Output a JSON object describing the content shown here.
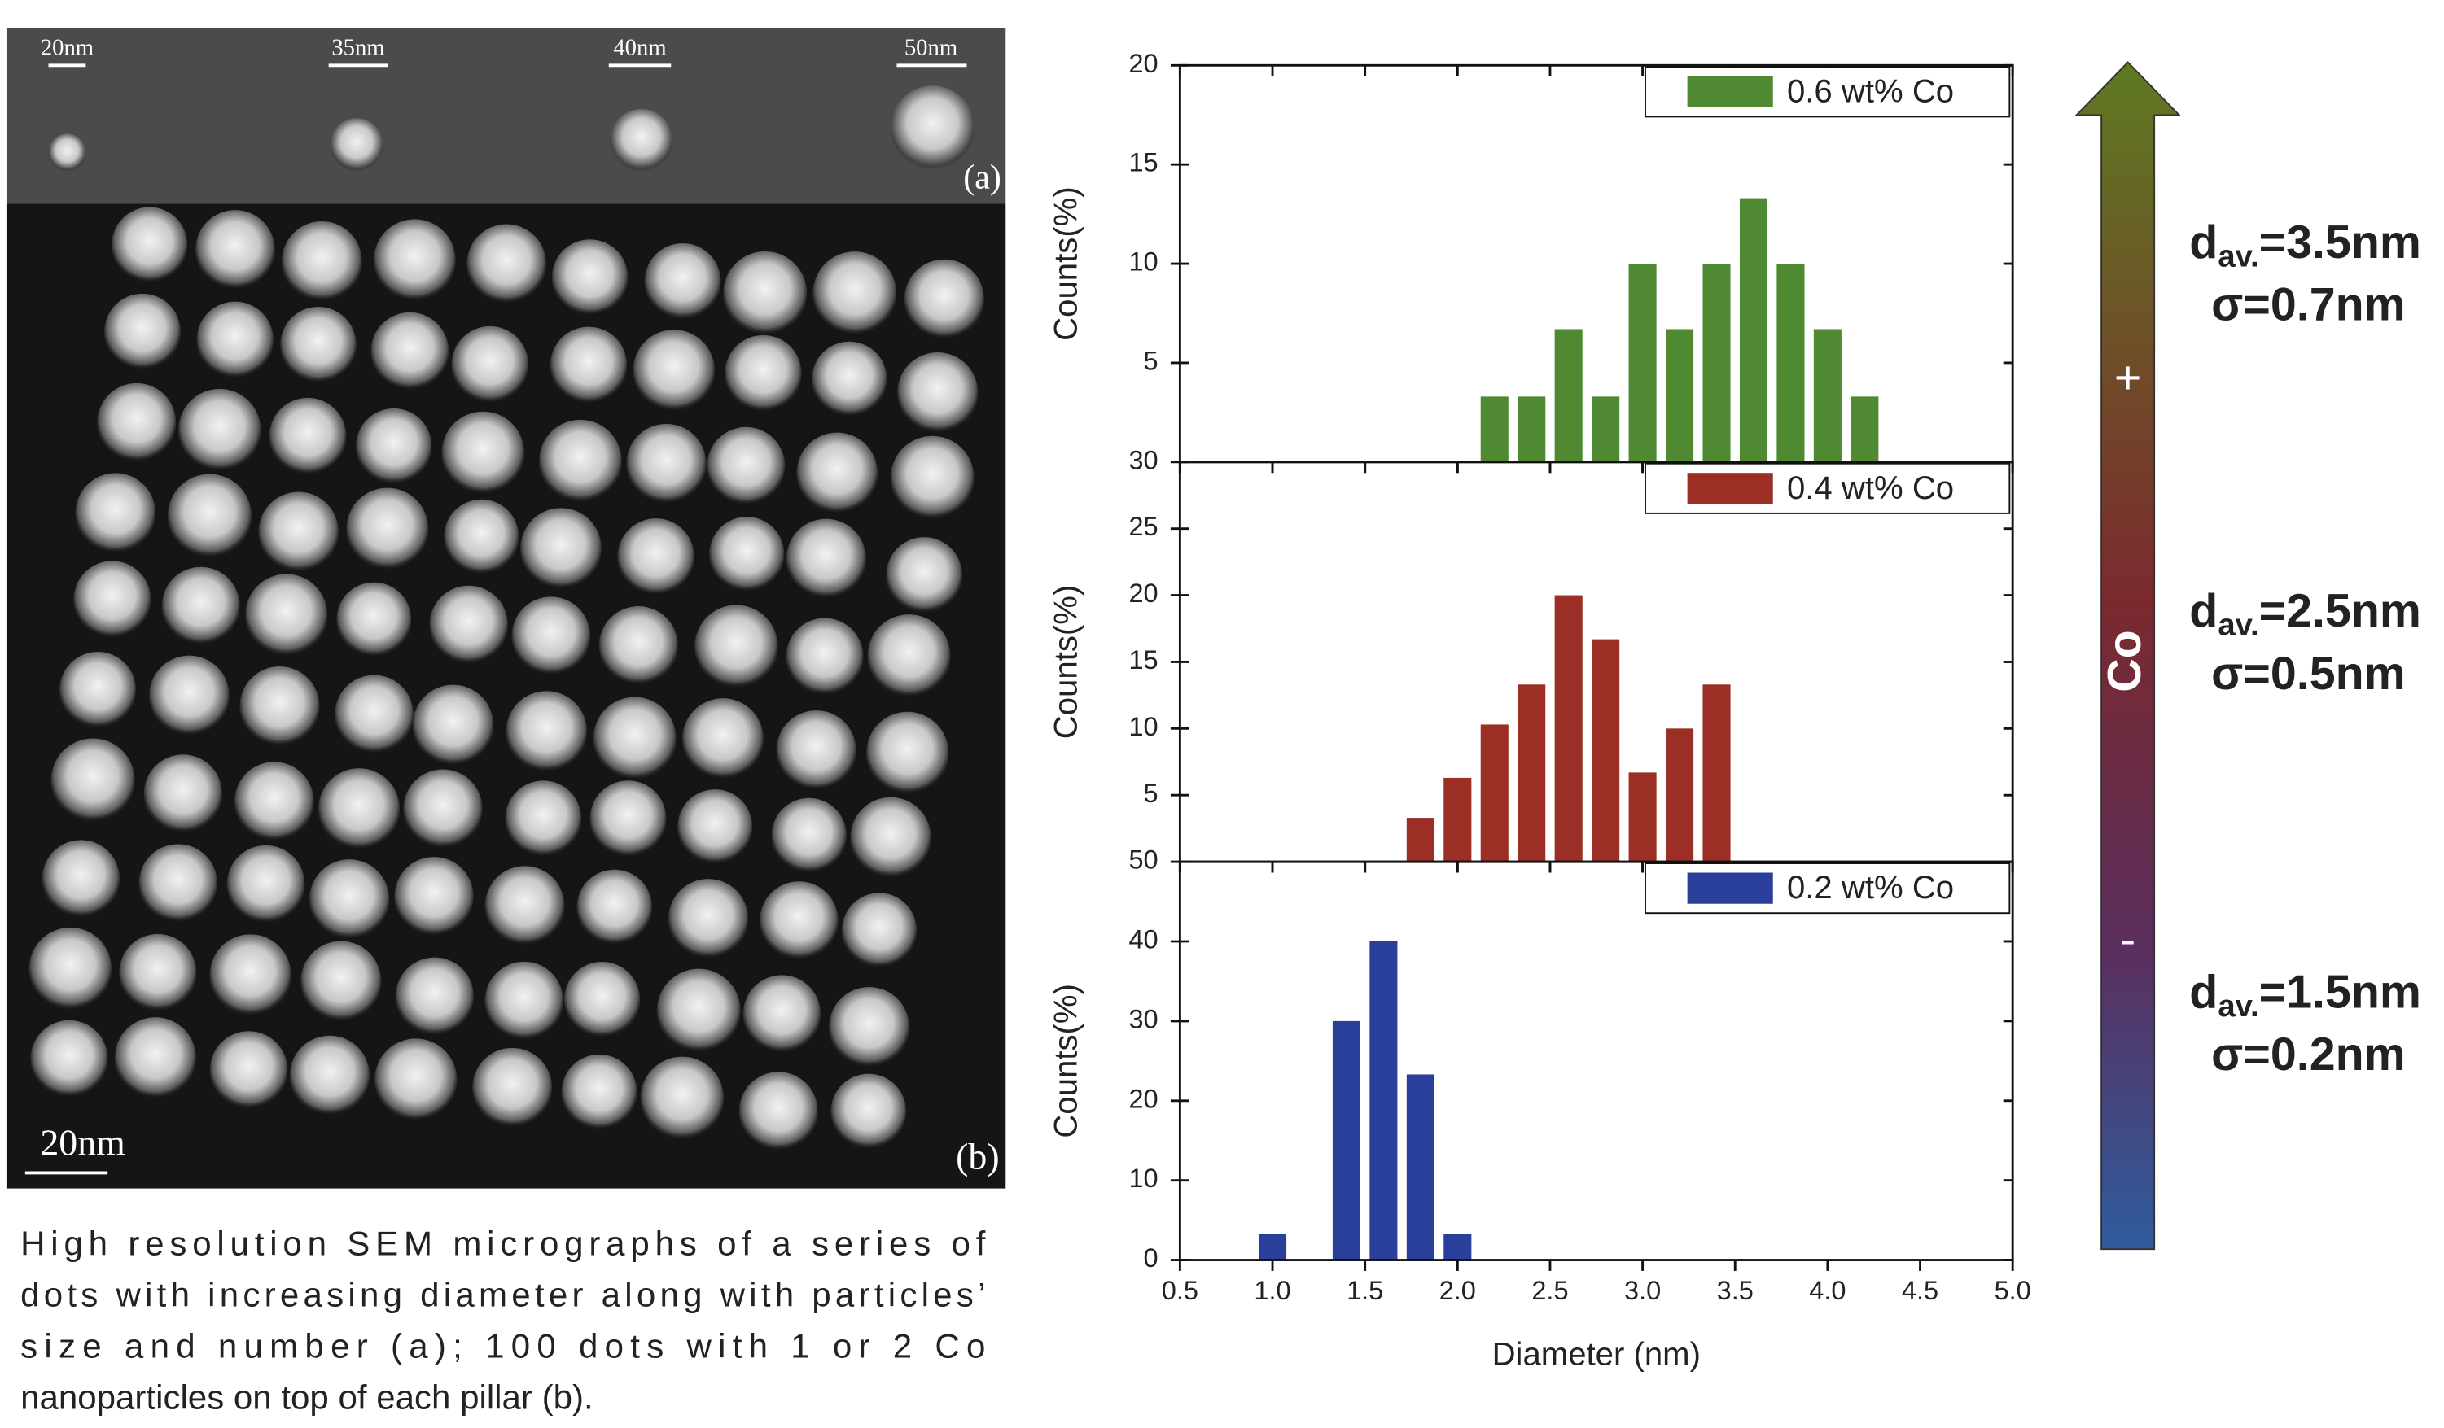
{
  "sem": {
    "scale_labels": [
      "20nm",
      "35nm",
      "40nm",
      "50nm"
    ],
    "panel_a": "(a)",
    "panel_b_scale": "20nm",
    "panel_b": "(b)"
  },
  "caption": {
    "lines": [
      "High resolution SEM micrographs of a series of",
      "dots with increasing diameter along with particles’",
      "size and number (a); 100 dots with 1 or 2 Co",
      "nanoparticles on top of each pillar (b)."
    ]
  },
  "arrow": {
    "label": "Co",
    "plus": "+",
    "minus": "-"
  },
  "annotations": [
    {
      "symbol": "d",
      "subscript": "av.",
      "value": "=3.5nm",
      "sigma": "σ=0.7nm"
    },
    {
      "symbol": "d",
      "subscript": "av.",
      "value": "=2.5nm",
      "sigma": "σ=0.5nm"
    },
    {
      "symbol": "d",
      "subscript": "av.",
      "value": "=1.5nm",
      "sigma": "σ=0.2nm"
    }
  ],
  "chart_data": [
    {
      "type": "bar",
      "ylabel": "Counts(%)",
      "legend": "upper right",
      "series": [
        {
          "name": "0.6 wt% Co",
          "color": "#4f8a32",
          "x": [
            2.2,
            2.4,
            2.6,
            2.8,
            3.0,
            3.2,
            3.4,
            3.6,
            3.8,
            4.0,
            4.2
          ],
          "values": [
            3.3,
            3.3,
            6.7,
            3.3,
            10,
            6.7,
            10,
            13.3,
            10,
            6.7,
            3.3
          ]
        }
      ],
      "xlim": [
        0.5,
        5.0
      ],
      "xticks": [
        0.5,
        1,
        1.5,
        2,
        2.5,
        3,
        3.5,
        4,
        4.5,
        5
      ],
      "ylim": [
        0,
        20
      ],
      "yticks": [
        5,
        10,
        15,
        20
      ]
    },
    {
      "type": "bar",
      "ylabel": "Counts(%)",
      "legend": "upper right",
      "series": [
        {
          "name": "0.4 wt% Co",
          "color": "#9b2f25",
          "x": [
            1.8,
            2.0,
            2.2,
            2.4,
            2.6,
            2.8,
            3.0,
            3.2,
            3.4
          ],
          "values": [
            3.3,
            6.3,
            10.3,
            13.3,
            20,
            16.7,
            6.7,
            10,
            13.3
          ]
        }
      ],
      "xlim": [
        0.5,
        5.0
      ],
      "xticks": [
        0.5,
        1,
        1.5,
        2,
        2.5,
        3,
        3.5,
        4,
        4.5,
        5
      ],
      "ylim": [
        0,
        30
      ],
      "yticks": [
        5,
        10,
        15,
        20,
        25,
        30
      ]
    },
    {
      "type": "bar",
      "ylabel": "Counts(%)",
      "xlabel": "Diameter (nm)",
      "legend": "upper right",
      "series": [
        {
          "name": "0.2 wt% Co",
          "color": "#2a3f9a",
          "x": [
            1.0,
            1.4,
            1.6,
            1.8,
            2.0
          ],
          "values": [
            3.3,
            30,
            40,
            23.3,
            3.3
          ]
        }
      ],
      "xlim": [
        0.5,
        5.0
      ],
      "xticks": [
        {
          "value": 0.5,
          "label": "0.5"
        },
        {
          "value": 1,
          "label": "1.0"
        },
        {
          "value": 1.5,
          "label": "1.5"
        },
        {
          "value": 2,
          "label": "2.0"
        },
        {
          "value": 2.5,
          "label": "2.5"
        },
        {
          "value": 3,
          "label": "3.0"
        },
        {
          "value": 3.5,
          "label": "3.5"
        },
        {
          "value": 4,
          "label": "4.0"
        },
        {
          "value": 4.5,
          "label": "4.5"
        },
        {
          "value": 5,
          "label": "5.0"
        }
      ],
      "ylim": [
        0,
        50
      ],
      "yticks": [
        0,
        10,
        20,
        30,
        40,
        50
      ]
    }
  ]
}
